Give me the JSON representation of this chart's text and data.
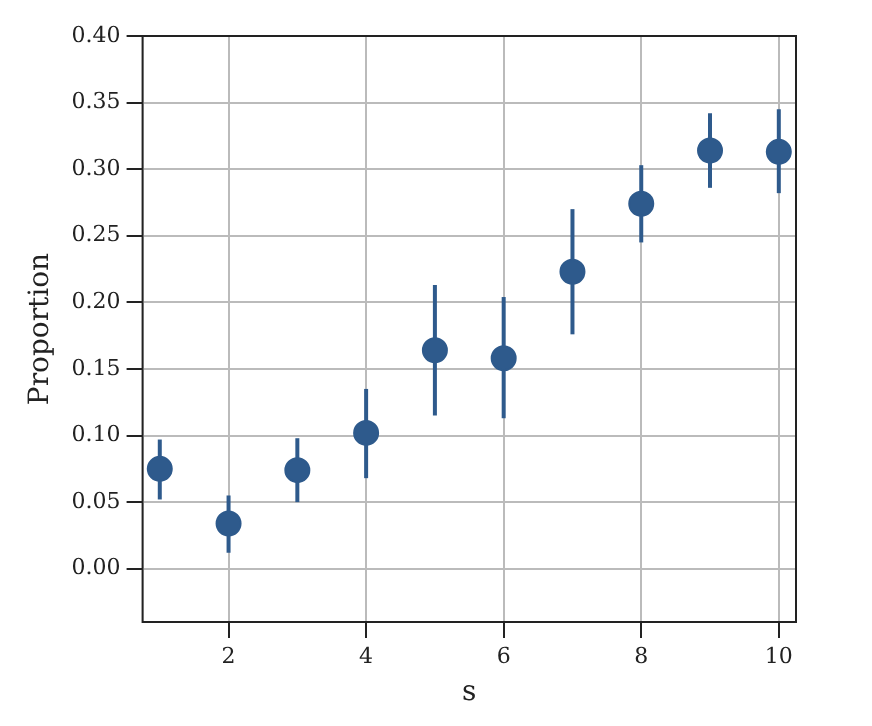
{
  "chart_data": {
    "type": "scatter",
    "xlabel": "s",
    "ylabel": "Proportion",
    "x": [
      1,
      2,
      3,
      4,
      5,
      6,
      7,
      8,
      9,
      10
    ],
    "values": [
      0.075,
      0.034,
      0.074,
      0.102,
      0.164,
      0.158,
      0.223,
      0.274,
      0.314,
      0.313
    ],
    "errors": [
      [
        0.052,
        0.097
      ],
      [
        0.012,
        0.055
      ],
      [
        0.05,
        0.098
      ],
      [
        0.068,
        0.135
      ],
      [
        0.115,
        0.213
      ],
      [
        0.113,
        0.204
      ],
      [
        0.176,
        0.27
      ],
      [
        0.245,
        0.303
      ],
      [
        0.286,
        0.342
      ],
      [
        0.282,
        0.345
      ]
    ],
    "color": "#2e5a8c",
    "marker": "circle",
    "xlim": [
      0.75,
      10.25
    ],
    "xticks": [
      2,
      4,
      6,
      8,
      10
    ],
    "ylim": [
      -0.04,
      0.4
    ],
    "yticks": [
      {
        "value": 0,
        "label": "0.00"
      },
      0.05,
      {
        "value": 0.1,
        "label": "0.10"
      },
      0.15,
      {
        "value": 0.2,
        "label": "0.20"
      },
      0.25,
      {
        "value": 0.3,
        "label": "0.30"
      },
      0.35,
      {
        "value": 0.4,
        "label": "0.40"
      }
    ],
    "grid": true,
    "legend": false
  }
}
